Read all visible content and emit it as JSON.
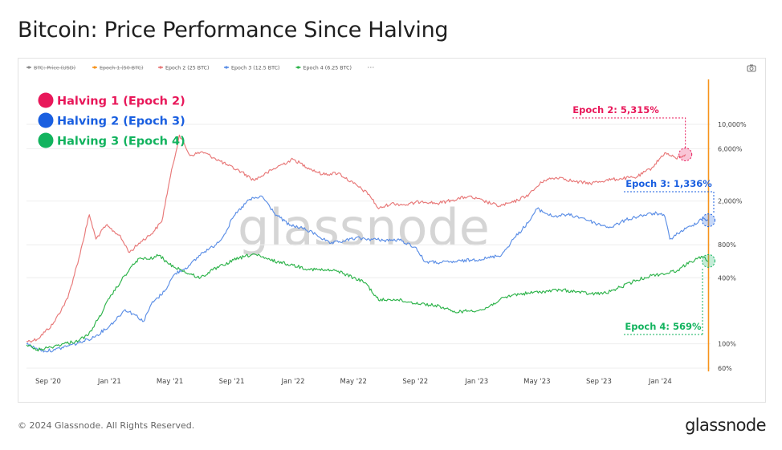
{
  "title": "Bitcoin: Price Performance Since Halving",
  "footer": {
    "copyright": "© 2024 Glassnode. All Rights Reserved.",
    "brand": "glassnode"
  },
  "watermark": "glassnode",
  "legend_bar": [
    {
      "label": "BTC: Price (USD)",
      "color": "#8a8a8a",
      "struck": true
    },
    {
      "label": "Epoch 1 (50 BTC)",
      "color": "#f7931a",
      "struck": true
    },
    {
      "label": "Epoch 2 (25 BTC)",
      "color": "#e87878",
      "struck": false
    },
    {
      "label": "Epoch 3 (12.5 BTC)",
      "color": "#5b8ee6",
      "struck": false
    },
    {
      "label": "Epoch 4 (6.25 BTC)",
      "color": "#2db34a",
      "struck": false
    }
  ],
  "halving_legend": [
    {
      "label": "Halving 1 (Epoch 2)",
      "color": "#e8185a"
    },
    {
      "label": "Halving 2 (Epoch 3)",
      "color": "#1a5fe0"
    },
    {
      "label": "Halving 3 (Epoch 4)",
      "color": "#12b35e"
    }
  ],
  "annotations": [
    {
      "label": "Epoch 2: 5,315%",
      "color": "#e8185a",
      "value": 5315
    },
    {
      "label": "Epoch 3: 1,336%",
      "color": "#1a5fe0",
      "value": 1336
    },
    {
      "label": "Epoch 4: 569%",
      "color": "#12b35e",
      "value": 569
    }
  ],
  "chart_data": {
    "type": "line",
    "y_scale": "log",
    "ylim": [
      60,
      14000
    ],
    "y_ticks": [
      60,
      100,
      400,
      800,
      2000,
      6000,
      10000
    ],
    "y_tick_labels": [
      "60%",
      "100%",
      "400%",
      "800%",
      "2,000%",
      "6,000%",
      "10,000%"
    ],
    "x_range": [
      "2020-07-20",
      "2024-04-10"
    ],
    "x_ticks": [
      "2020-09-01",
      "2021-01-01",
      "2021-05-01",
      "2021-09-01",
      "2022-01-01",
      "2022-05-01",
      "2022-09-01",
      "2023-01-01",
      "2023-05-01",
      "2023-09-01",
      "2024-01-01"
    ],
    "x_tick_labels": [
      "Sep '20",
      "Jan '21",
      "May '21",
      "Sep '21",
      "Jan '22",
      "May '22",
      "Sep '22",
      "Jan '23",
      "May '23",
      "Sep '23",
      "Jan '24"
    ],
    "marker_date": "2024-04-06",
    "series": [
      {
        "name": "Epoch 2 (25 BTC)",
        "color": "#e87878",
        "points": [
          [
            "2020-07-20",
            105
          ],
          [
            "2020-08-10",
            110
          ],
          [
            "2020-09-10",
            150
          ],
          [
            "2020-10-10",
            260
          ],
          [
            "2020-11-01",
            600
          ],
          [
            "2020-11-22",
            1500
          ],
          [
            "2020-12-05",
            900
          ],
          [
            "2020-12-25",
            1200
          ],
          [
            "2021-01-20",
            980
          ],
          [
            "2021-02-10",
            680
          ],
          [
            "2021-03-05",
            860
          ],
          [
            "2021-03-25",
            1000
          ],
          [
            "2021-04-15",
            1300
          ],
          [
            "2021-04-30",
            3000
          ],
          [
            "2021-05-20",
            8000
          ],
          [
            "2021-06-10",
            5200
          ],
          [
            "2021-07-05",
            5600
          ],
          [
            "2021-07-30",
            4900
          ],
          [
            "2021-08-25",
            4200
          ],
          [
            "2021-09-20",
            3700
          ],
          [
            "2021-10-15",
            3100
          ],
          [
            "2021-11-10",
            3600
          ],
          [
            "2021-12-05",
            4200
          ],
          [
            "2022-01-01",
            4800
          ],
          [
            "2022-02-01",
            4000
          ],
          [
            "2022-03-01",
            3500
          ],
          [
            "2022-04-01",
            3600
          ],
          [
            "2022-05-01",
            2900
          ],
          [
            "2022-06-01",
            2300
          ],
          [
            "2022-06-20",
            1700
          ],
          [
            "2022-07-15",
            1900
          ],
          [
            "2022-08-15",
            1850
          ],
          [
            "2022-09-15",
            2000
          ],
          [
            "2022-10-15",
            1900
          ],
          [
            "2022-11-15",
            2050
          ],
          [
            "2022-12-15",
            2200
          ],
          [
            "2023-01-15",
            2000
          ],
          [
            "2023-02-15",
            1800
          ],
          [
            "2023-03-15",
            1950
          ],
          [
            "2023-04-15",
            2300
          ],
          [
            "2023-05-15",
            3100
          ],
          [
            "2023-06-15",
            3300
          ],
          [
            "2023-07-15",
            3000
          ],
          [
            "2023-08-15",
            2900
          ],
          [
            "2023-09-15",
            3100
          ],
          [
            "2023-10-15",
            3200
          ],
          [
            "2023-11-15",
            3300
          ],
          [
            "2023-12-15",
            4000
          ],
          [
            "2024-01-10",
            5500
          ],
          [
            "2024-02-01",
            4900
          ],
          [
            "2024-02-20",
            5315
          ]
        ]
      },
      {
        "name": "Epoch 3 (12.5 BTC)",
        "color": "#5b8ee6",
        "points": [
          [
            "2020-07-20",
            100
          ],
          [
            "2020-08-05",
            92
          ],
          [
            "2020-08-25",
            86
          ],
          [
            "2020-09-15",
            88
          ],
          [
            "2020-10-10",
            96
          ],
          [
            "2020-11-01",
            102
          ],
          [
            "2020-12-01",
            115
          ],
          [
            "2021-01-01",
            145
          ],
          [
            "2021-02-01",
            205
          ],
          [
            "2021-02-20",
            185
          ],
          [
            "2021-03-10",
            160
          ],
          [
            "2021-03-25",
            230
          ],
          [
            "2021-04-20",
            300
          ],
          [
            "2021-05-10",
            430
          ],
          [
            "2021-06-10",
            520
          ],
          [
            "2021-07-05",
            680
          ],
          [
            "2021-07-25",
            760
          ],
          [
            "2021-08-15",
            950
          ],
          [
            "2021-09-05",
            1450
          ],
          [
            "2021-10-05",
            2050
          ],
          [
            "2021-11-01",
            2200
          ],
          [
            "2021-11-25",
            1550
          ],
          [
            "2021-12-25",
            1200
          ],
          [
            "2022-01-15",
            1150
          ],
          [
            "2022-02-15",
            1000
          ],
          [
            "2022-03-15",
            820
          ],
          [
            "2022-04-10",
            860
          ],
          [
            "2022-05-05",
            920
          ],
          [
            "2022-06-01",
            900
          ],
          [
            "2022-07-01",
            880
          ],
          [
            "2022-08-01",
            880
          ],
          [
            "2022-09-01",
            760
          ],
          [
            "2022-09-20",
            560
          ],
          [
            "2022-10-20",
            550
          ],
          [
            "2022-11-20",
            560
          ],
          [
            "2022-12-20",
            580
          ],
          [
            "2023-01-20",
            600
          ],
          [
            "2023-02-20",
            650
          ],
          [
            "2023-03-15",
            900
          ],
          [
            "2023-04-15",
            1300
          ],
          [
            "2023-05-01",
            1700
          ],
          [
            "2023-06-01",
            1450
          ],
          [
            "2023-07-01",
            1500
          ],
          [
            "2023-08-01",
            1400
          ],
          [
            "2023-08-25",
            1250
          ],
          [
            "2023-09-25",
            1150
          ],
          [
            "2023-10-25",
            1350
          ],
          [
            "2023-11-25",
            1480
          ],
          [
            "2023-12-25",
            1550
          ],
          [
            "2024-01-10",
            1450
          ],
          [
            "2024-01-20",
            900
          ],
          [
            "2024-02-10",
            1050
          ],
          [
            "2024-03-05",
            1200
          ],
          [
            "2024-03-25",
            1400
          ],
          [
            "2024-04-06",
            1336
          ]
        ]
      },
      {
        "name": "Epoch 4 (6.25 BTC)",
        "color": "#2db34a",
        "points": [
          [
            "2020-07-20",
            98
          ],
          [
            "2020-08-10",
            88
          ],
          [
            "2020-09-01",
            92
          ],
          [
            "2020-10-01",
            100
          ],
          [
            "2020-10-25",
            105
          ],
          [
            "2020-11-20",
            120
          ],
          [
            "2020-12-10",
            170
          ],
          [
            "2021-01-01",
            260
          ],
          [
            "2021-01-25",
            380
          ],
          [
            "2021-02-10",
            480
          ],
          [
            "2021-03-01",
            600
          ],
          [
            "2021-03-20",
            590
          ],
          [
            "2021-04-10",
            640
          ],
          [
            "2021-04-30",
            530
          ],
          [
            "2021-05-20",
            480
          ],
          [
            "2021-06-10",
            430
          ],
          [
            "2021-07-01",
            400
          ],
          [
            "2021-07-25",
            470
          ],
          [
            "2021-08-15",
            520
          ],
          [
            "2021-09-05",
            580
          ],
          [
            "2021-09-25",
            620
          ],
          [
            "2021-10-15",
            660
          ],
          [
            "2021-11-05",
            600
          ],
          [
            "2021-12-01",
            560
          ],
          [
            "2022-01-01",
            520
          ],
          [
            "2022-02-01",
            480
          ],
          [
            "2022-03-01",
            470
          ],
          [
            "2022-04-01",
            460
          ],
          [
            "2022-05-01",
            400
          ],
          [
            "2022-05-25",
            360
          ],
          [
            "2022-06-20",
            250
          ],
          [
            "2022-07-20",
            255
          ],
          [
            "2022-08-20",
            240
          ],
          [
            "2022-09-20",
            230
          ],
          [
            "2022-10-20",
            220
          ],
          [
            "2022-11-15",
            195
          ],
          [
            "2022-12-15",
            200
          ],
          [
            "2023-01-15",
            205
          ],
          [
            "2023-02-15",
            250
          ],
          [
            "2023-03-15",
            280
          ],
          [
            "2023-04-15",
            290
          ],
          [
            "2023-05-15",
            300
          ],
          [
            "2023-06-15",
            310
          ],
          [
            "2023-07-15",
            300
          ],
          [
            "2023-08-15",
            285
          ],
          [
            "2023-09-15",
            290
          ],
          [
            "2023-10-15",
            330
          ],
          [
            "2023-11-15",
            380
          ],
          [
            "2023-12-15",
            420
          ],
          [
            "2024-01-15",
            440
          ],
          [
            "2024-02-05",
            470
          ],
          [
            "2024-03-01",
            560
          ],
          [
            "2024-03-25",
            620
          ],
          [
            "2024-04-06",
            569
          ]
        ]
      }
    ]
  }
}
